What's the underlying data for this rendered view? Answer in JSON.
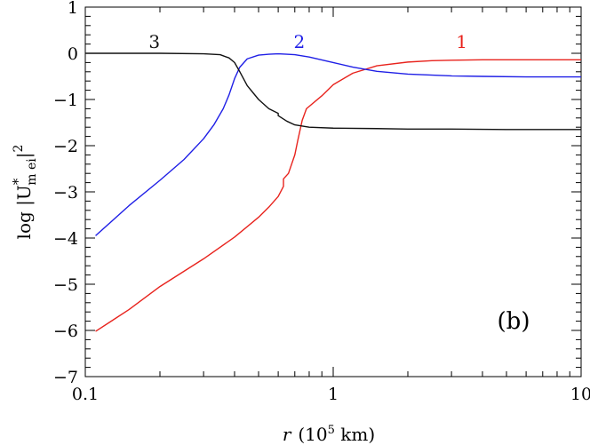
{
  "chart_data": {
    "type": "line",
    "panel_label": "(b)",
    "xlabel": {
      "var": "r",
      "paren_open": "(10",
      "exp": "5",
      "unit": " km)"
    },
    "ylabel": {
      "prefix": "log |U",
      "sup": "*",
      "sub": "m ei",
      "suffix": "|",
      "power": "2"
    },
    "xscale": "log",
    "xlim": [
      0.1,
      10
    ],
    "ylim": [
      -7,
      1
    ],
    "xticks": [
      {
        "value": 0.1,
        "label": "0.1"
      },
      {
        "value": 1,
        "label": "1"
      },
      {
        "value": 10,
        "label": "10"
      }
    ],
    "yticks": [
      {
        "value": 1,
        "label": "1"
      },
      {
        "value": 0,
        "label": "0"
      },
      {
        "value": -1,
        "label": "−1"
      },
      {
        "value": -2,
        "label": "−2"
      },
      {
        "value": -3,
        "label": "−3"
      },
      {
        "value": -4,
        "label": "−4"
      },
      {
        "value": -5,
        "label": "−5"
      },
      {
        "value": -6,
        "label": "−6"
      },
      {
        "value": -7,
        "label": "−7"
      }
    ],
    "series": [
      {
        "name": "1",
        "color": "#e8231d",
        "label_at": {
          "x": 3.3,
          "y": 0.12
        },
        "x": [
          0.11,
          0.15,
          0.2,
          0.3,
          0.4,
          0.5,
          0.55,
          0.6,
          0.63,
          0.63,
          0.66,
          0.7,
          0.72,
          0.75,
          0.78,
          0.9,
          1.0,
          1.2,
          1.5,
          2.0,
          2.5,
          3.0,
          4.0,
          5.0,
          7.0,
          10.0
        ],
        "y": [
          -6.02,
          -5.55,
          -5.05,
          -4.45,
          -3.98,
          -3.55,
          -3.33,
          -3.1,
          -2.88,
          -2.72,
          -2.6,
          -2.2,
          -1.88,
          -1.45,
          -1.2,
          -0.92,
          -0.68,
          -0.43,
          -0.27,
          -0.19,
          -0.16,
          -0.15,
          -0.14,
          -0.14,
          -0.14,
          -0.14
        ]
      },
      {
        "name": "2",
        "color": "#1f1fe6",
        "label_at": {
          "x": 0.73,
          "y": 0.12
        },
        "x": [
          0.11,
          0.15,
          0.2,
          0.25,
          0.3,
          0.33,
          0.36,
          0.38,
          0.4,
          0.42,
          0.45,
          0.5,
          0.55,
          0.6,
          0.65,
          0.7,
          0.8,
          1.0,
          1.2,
          1.5,
          2.0,
          3.0,
          4.0,
          6.0,
          10.0
        ],
        "y": [
          -3.95,
          -3.3,
          -2.75,
          -2.3,
          -1.85,
          -1.55,
          -1.2,
          -0.9,
          -0.55,
          -0.3,
          -0.12,
          -0.04,
          -0.02,
          -0.01,
          -0.02,
          -0.03,
          -0.08,
          -0.2,
          -0.3,
          -0.39,
          -0.45,
          -0.49,
          -0.5,
          -0.51,
          -0.51
        ]
      },
      {
        "name": "3",
        "color": "#111111",
        "label_at": {
          "x": 0.19,
          "y": 0.12
        },
        "x": [
          0.1,
          0.2,
          0.3,
          0.35,
          0.38,
          0.4,
          0.42,
          0.45,
          0.5,
          0.55,
          0.6,
          0.6,
          0.65,
          0.7,
          0.8,
          1.0,
          1.5,
          2.0,
          3.0,
          5.0,
          10.0
        ],
        "y": [
          0.0,
          0.0,
          -0.01,
          -0.03,
          -0.1,
          -0.2,
          -0.4,
          -0.7,
          -1.0,
          -1.2,
          -1.3,
          -1.35,
          -1.47,
          -1.55,
          -1.6,
          -1.62,
          -1.63,
          -1.64,
          -1.64,
          -1.65,
          -1.65
        ]
      }
    ]
  }
}
